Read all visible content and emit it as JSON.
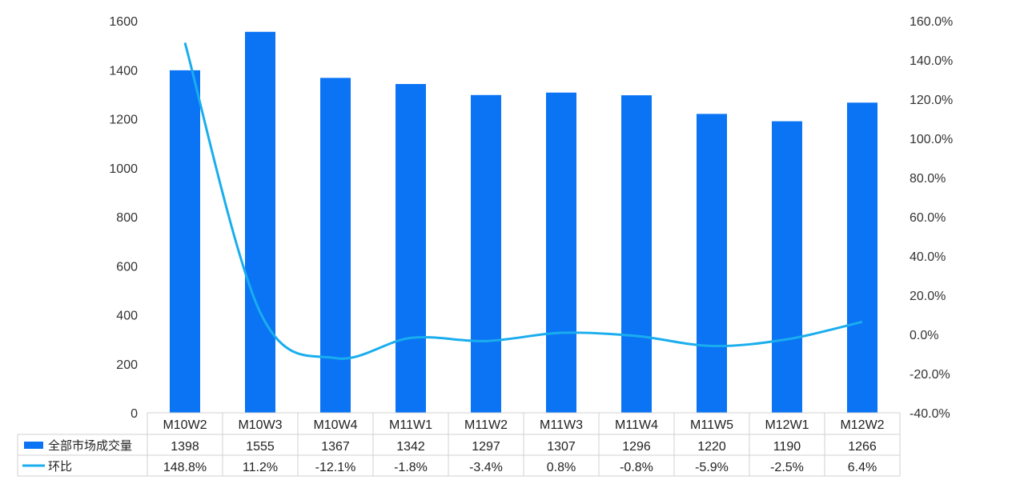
{
  "chart_data": {
    "type": "bar",
    "categories": [
      "M10W2",
      "M10W3",
      "M10W4",
      "M11W1",
      "M11W2",
      "M11W3",
      "M11W4",
      "M11W5",
      "M12W1",
      "M12W2"
    ],
    "series": [
      {
        "name": "全部市场成交量",
        "type": "bar",
        "axis": "left",
        "color": "#0A74F5",
        "values": [
          1398,
          1555,
          1367,
          1342,
          1297,
          1307,
          1296,
          1220,
          1190,
          1266
        ],
        "labels": [
          "1398",
          "1555",
          "1367",
          "1342",
          "1297",
          "1307",
          "1296",
          "1220",
          "1190",
          "1266"
        ]
      },
      {
        "name": "环比",
        "type": "line",
        "axis": "right",
        "color": "#1AADEE",
        "values": [
          148.8,
          11.2,
          -12.1,
          -1.8,
          -3.4,
          0.8,
          -0.8,
          -5.9,
          -2.5,
          6.4
        ],
        "labels": [
          "148.8%",
          "11.2%",
          "-12.1%",
          "-1.8%",
          "-3.4%",
          "0.8%",
          "-0.8%",
          "-5.9%",
          "-2.5%",
          "6.4%"
        ]
      }
    ],
    "ylim": [
      0,
      1600
    ],
    "yticks": [
      "0",
      "200",
      "400",
      "600",
      "800",
      "1000",
      "1200",
      "1400",
      "1600"
    ],
    "y2lim": [
      -40,
      160
    ],
    "y2ticks": [
      "-40.0%",
      "-20.0%",
      "0.0%",
      "20.0%",
      "40.0%",
      "60.0%",
      "80.0%",
      "100.0%",
      "120.0%",
      "140.0%",
      "160.0%"
    ],
    "grid": false,
    "legend": "data-table"
  }
}
